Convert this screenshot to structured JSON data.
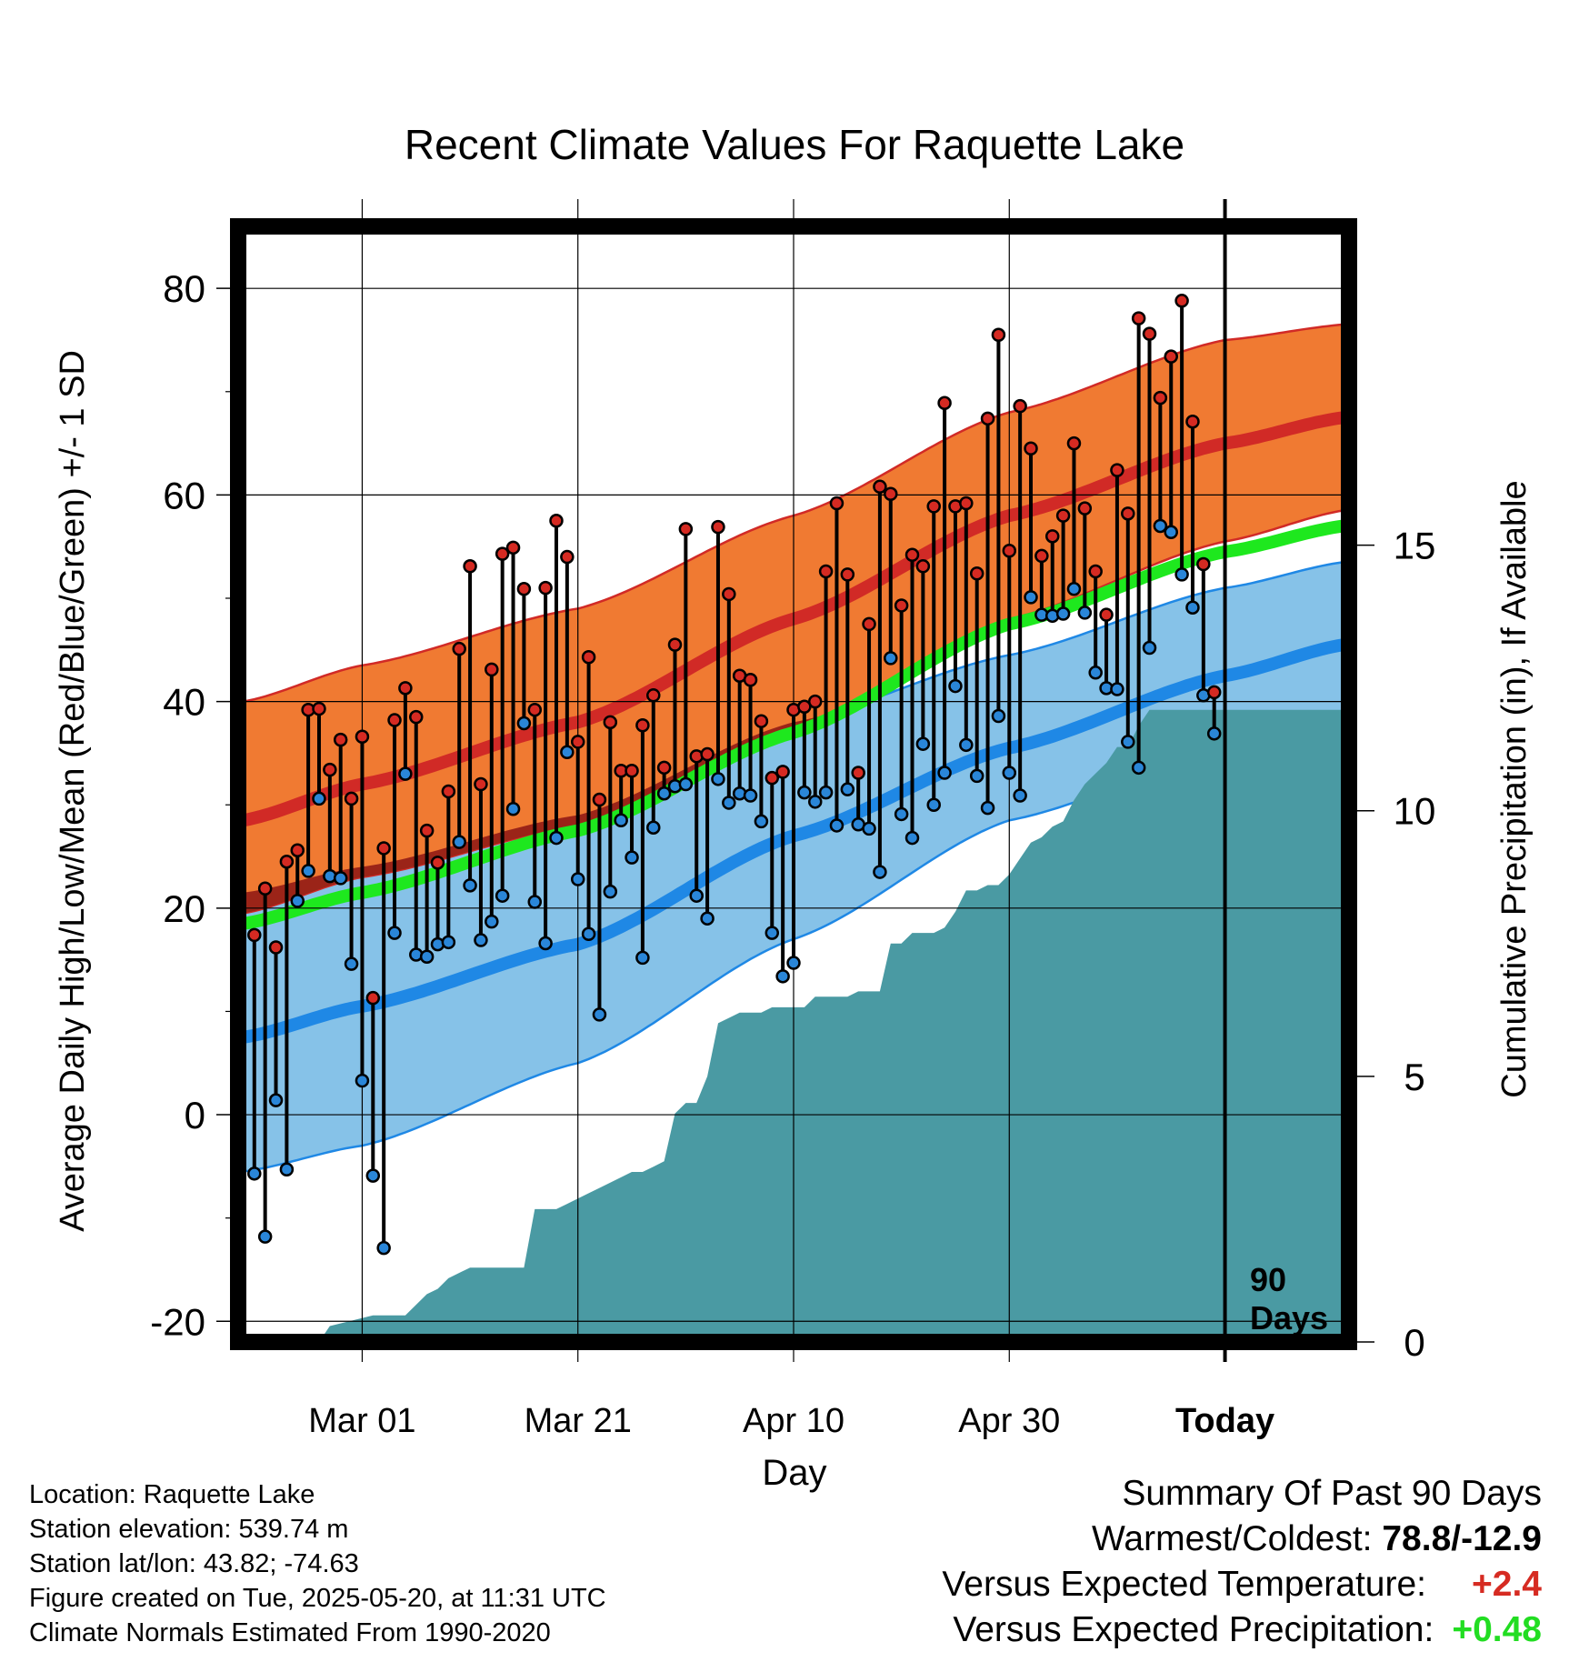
{
  "chart_data": {
    "type": "line",
    "title": "Recent Climate Values For Raquette Lake",
    "xlabel": "Day",
    "ylabel": "Average Daily High/Low/Mean (Red/Blue/Green) +/- 1 SD",
    "y2label": "Cumulative Precipitation (in), If Available",
    "ylim": [
      -22,
      86
    ],
    "y2lim": [
      0,
      21
    ],
    "xlim": [
      -11.5,
      91.5
    ],
    "x_ticks": [
      {
        "day": 0,
        "label": "Mar 01"
      },
      {
        "day": 20,
        "label": "Mar 21"
      },
      {
        "day": 40,
        "label": "Apr 10"
      },
      {
        "day": 60,
        "label": "Apr 30"
      },
      {
        "day": 80,
        "label": "Today"
      }
    ],
    "y_ticks": [
      -20,
      0,
      20,
      40,
      60,
      80
    ],
    "y2_ticks": [
      0,
      5,
      10,
      15
    ],
    "today_marker": {
      "day": 80,
      "label_line1": "90",
      "label_line2": "Days"
    },
    "normals": {
      "days": [
        -11,
        0,
        20,
        40,
        60,
        80,
        91
      ],
      "high_mean": [
        28.5,
        32,
        38,
        48,
        58,
        65,
        67.5
      ],
      "high_plus_sd": [
        40,
        43.5,
        49,
        58,
        68,
        75,
        76.5
      ],
      "high_minus_sd": [
        19.5,
        23,
        28,
        37,
        48,
        55.5,
        58.5
      ],
      "low_mean": [
        7.5,
        10.5,
        16.5,
        27,
        35.5,
        42.5,
        45.5
      ],
      "low_plus_sd": [
        21.5,
        24,
        29,
        38,
        44.5,
        51,
        53.5
      ],
      "low_minus_sd": [
        -5.5,
        -3,
        5,
        17,
        28.5,
        35,
        38
      ],
      "avg_mean": [
        18.5,
        21.5,
        27.5,
        37,
        47.5,
        54.5,
        57
      ]
    },
    "series": [
      {
        "name": "High",
        "x": [
          -10,
          -9,
          -8,
          -7,
          -6,
          -5,
          -4,
          -3,
          -2,
          -1,
          0,
          1,
          2,
          3,
          4,
          5,
          6,
          7,
          8,
          9,
          10,
          11,
          12,
          13,
          14,
          15,
          16,
          17,
          18,
          19,
          20,
          21,
          22,
          23,
          24,
          25,
          26,
          27,
          28,
          29,
          30,
          31,
          32,
          33,
          34,
          35,
          36,
          37,
          38,
          39,
          40,
          41,
          42,
          43,
          44,
          45,
          46,
          47,
          48,
          49,
          50,
          51,
          52,
          53,
          54,
          55,
          56,
          57,
          58,
          59,
          60,
          61,
          62,
          63,
          64,
          65,
          66,
          67,
          68,
          69,
          70,
          71,
          72,
          73,
          74,
          75,
          76,
          77,
          78,
          79
        ],
        "values": [
          17.4,
          21.9,
          16.2,
          24.5,
          25.6,
          39.2,
          39.3,
          33.4,
          36.3,
          30.6,
          36.6,
          11.3,
          25.8,
          38.2,
          41.3,
          38.5,
          27.5,
          24.4,
          31.3,
          45.1,
          53.1,
          32.0,
          43.1,
          54.3,
          54.9,
          50.9,
          39.2,
          51.0,
          57.5,
          54.0,
          36.1,
          44.3,
          30.5,
          38.0,
          33.3,
          33.3,
          37.7,
          40.6,
          33.6,
          45.5,
          56.7,
          34.7,
          34.9,
          56.9,
          50.4,
          42.5,
          42.1,
          38.1,
          32.6,
          33.2,
          39.2,
          39.5,
          40.0,
          52.6,
          59.2,
          52.3,
          33.1,
          47.5,
          60.8,
          60.1,
          49.3,
          54.2,
          53.1,
          58.9,
          68.9,
          58.9,
          59.2,
          52.4,
          67.4,
          75.5,
          54.6,
          68.6,
          64.5,
          54.1,
          56.0,
          58.0,
          65.0,
          58.7,
          52.6,
          48.4,
          62.4,
          58.2,
          77.1,
          75.6,
          69.4,
          73.4,
          78.8,
          67.1,
          53.3,
          40.9
        ]
      },
      {
        "name": "Low",
        "x": [
          -10,
          -9,
          -8,
          -7,
          -6,
          -5,
          -4,
          -3,
          -2,
          -1,
          0,
          1,
          2,
          3,
          4,
          5,
          6,
          7,
          8,
          9,
          10,
          11,
          12,
          13,
          14,
          15,
          16,
          17,
          18,
          19,
          20,
          21,
          22,
          23,
          24,
          25,
          26,
          27,
          28,
          29,
          30,
          31,
          32,
          33,
          34,
          35,
          36,
          37,
          38,
          39,
          40,
          41,
          42,
          43,
          44,
          45,
          46,
          47,
          48,
          49,
          50,
          51,
          52,
          53,
          54,
          55,
          56,
          57,
          58,
          59,
          60,
          61,
          62,
          63,
          64,
          65,
          66,
          67,
          68,
          69,
          70,
          71,
          72,
          73,
          74,
          75,
          76,
          77,
          78,
          79
        ],
        "values": [
          -5.7,
          -11.8,
          1.4,
          -5.3,
          20.7,
          23.6,
          30.6,
          23.1,
          22.9,
          14.6,
          3.3,
          -5.9,
          -12.9,
          17.6,
          33.0,
          15.5,
          15.3,
          16.5,
          16.7,
          26.4,
          22.2,
          16.9,
          18.7,
          21.2,
          29.6,
          37.9,
          20.6,
          16.6,
          26.8,
          35.1,
          22.8,
          17.5,
          9.7,
          21.6,
          28.5,
          24.9,
          15.2,
          27.8,
          31.1,
          31.8,
          32.0,
          21.2,
          19.0,
          32.5,
          30.2,
          31.1,
          30.9,
          28.4,
          17.6,
          13.4,
          14.7,
          31.2,
          30.3,
          31.2,
          28.0,
          31.5,
          28.1,
          27.7,
          23.5,
          44.2,
          29.1,
          26.8,
          35.9,
          30.0,
          33.1,
          41.5,
          35.8,
          32.8,
          29.7,
          38.6,
          33.1,
          30.9,
          50.1,
          48.4,
          48.3,
          48.5,
          50.9,
          48.6,
          42.8,
          41.3,
          41.2,
          36.1,
          33.6,
          45.2,
          57.0,
          56.4,
          52.3,
          49.1,
          40.6,
          36.9
        ]
      }
    ],
    "precip_cumulative": {
      "x": [
        -11,
        -4,
        -3,
        1,
        2,
        3,
        4,
        6,
        7,
        8,
        10,
        11,
        12,
        13,
        14,
        15,
        16,
        17,
        18,
        19,
        20,
        21,
        22,
        23,
        24,
        25,
        26,
        27,
        28,
        29,
        30,
        31,
        32,
        33,
        34,
        35,
        36,
        37,
        38,
        39,
        40,
        41,
        42,
        43,
        44,
        45,
        46,
        47,
        48,
        49,
        50,
        51,
        52,
        53,
        54,
        55,
        56,
        57,
        58,
        59,
        60,
        61,
        62,
        63,
        64,
        65,
        66,
        67,
        68,
        69,
        70,
        71,
        72,
        73,
        74,
        75,
        76,
        77,
        78,
        79,
        80,
        81,
        82,
        83,
        84,
        85,
        86,
        87,
        88,
        89,
        90,
        91
      ],
      "values": [
        0,
        0,
        0.3,
        0.5,
        0.5,
        0.5,
        0.5,
        0.9,
        1.0,
        1.2,
        1.4,
        1.4,
        1.4,
        1.4,
        1.4,
        1.4,
        2.5,
        2.5,
        2.5,
        2.6,
        2.7,
        2.8,
        2.9,
        3.0,
        3.1,
        3.2,
        3.2,
        3.3,
        3.4,
        4.3,
        4.5,
        4.5,
        5.0,
        6.0,
        6.1,
        6.2,
        6.2,
        6.2,
        6.3,
        6.3,
        6.3,
        6.3,
        6.5,
        6.5,
        6.5,
        6.5,
        6.6,
        6.6,
        6.6,
        7.5,
        7.5,
        7.7,
        7.7,
        7.7,
        7.8,
        8.1,
        8.5,
        8.5,
        8.6,
        8.6,
        8.8,
        9.1,
        9.4,
        9.5,
        9.7,
        9.8,
        10.2,
        10.5,
        10.7,
        10.9,
        11.2,
        11.2,
        11.6,
        11.9,
        11.9,
        11.9,
        11.9,
        11.9,
        11.9,
        11.9,
        11.9,
        11.9,
        11.9,
        11.9,
        11.9,
        11.9,
        11.9,
        11.9,
        11.9,
        11.9,
        11.9,
        11.9
      ]
    }
  },
  "colors": {
    "high_band": "#f07a32",
    "high_mean": "#d12a26",
    "low_band": "#86c2e8",
    "low_mean": "#1f88e5",
    "avg_mean": "#1ee81e",
    "overlap_band": "#9b2418",
    "precip": "#4a9aa3",
    "high_dot": "#d52a22",
    "low_dot": "#2a86d8"
  },
  "info": {
    "location": "Location: Raquette Lake",
    "elevation": "Station elevation: 539.74 m",
    "latlon": "Station lat/lon: 43.82; -74.63",
    "created": "Figure created on Tue, 2025-05-20, at 11:31 UTC",
    "normals": "Climate Normals Estimated From 1990-2020"
  },
  "summary": {
    "heading": "Summary Of Past 90 Days",
    "warm_cold_label": "Warmest/Coldest:",
    "warm_cold_value": "78.8/-12.9",
    "temp_label": "Versus Expected Temperature:",
    "temp_value": "+2.4",
    "temp_color": "#d62b22",
    "precip_label": "Versus Expected Precipitation:",
    "precip_value": "+0.48",
    "precip_color": "#22dd22"
  }
}
